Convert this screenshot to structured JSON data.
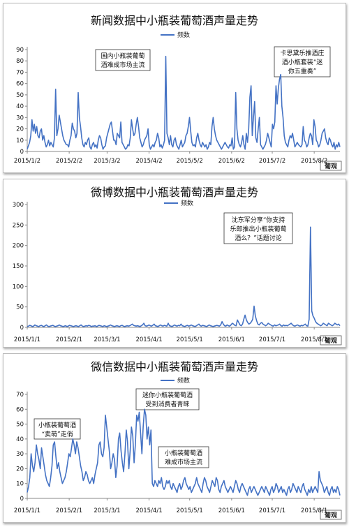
{
  "chart_data": [
    {
      "type": "line",
      "title": "新闻数据中小瓶装葡萄酒声量走势",
      "series": [
        {
          "name": "频数",
          "color": "#4472c4",
          "values": [
            2,
            5,
            8,
            14,
            28,
            18,
            24,
            16,
            22,
            14,
            12,
            18,
            20,
            10,
            14,
            8,
            4,
            6,
            10,
            5,
            8,
            6,
            4,
            12,
            55,
            14,
            20,
            32,
            26,
            20,
            14,
            10,
            8,
            6,
            6,
            4,
            10,
            14,
            25,
            20,
            18,
            12,
            16,
            52,
            30,
            22,
            12,
            6,
            4,
            8,
            6,
            10,
            12,
            4,
            2,
            6,
            8,
            4,
            6,
            3,
            10,
            14,
            12,
            6,
            2,
            4,
            5,
            12,
            16,
            20,
            24,
            26,
            18,
            10,
            10,
            6,
            16,
            14,
            12,
            26,
            8,
            6,
            4,
            2,
            3,
            6,
            5,
            12,
            28,
            20,
            14,
            16,
            24,
            30,
            22,
            12,
            8,
            4,
            6,
            10,
            12,
            14,
            20,
            6,
            2,
            4,
            6,
            4,
            8,
            10,
            16,
            12,
            4,
            6,
            3,
            6,
            10,
            84,
            16,
            12,
            6,
            14,
            6,
            4,
            10,
            12,
            6,
            4,
            2,
            6,
            10,
            4,
            6,
            8,
            14,
            16,
            22,
            30,
            18,
            8,
            5,
            6,
            4,
            12,
            16,
            10,
            6,
            4,
            8,
            6,
            4,
            6,
            2,
            4,
            8,
            6,
            22,
            30,
            20,
            14,
            10,
            8,
            6,
            4,
            2,
            4,
            6,
            8,
            6,
            4,
            3,
            6,
            5,
            12,
            2,
            4,
            52,
            20,
            10,
            6,
            4,
            8,
            14,
            6,
            2,
            16,
            8,
            20,
            48,
            58,
            14,
            30,
            44,
            12,
            8,
            20,
            30,
            6,
            4,
            2,
            4,
            6,
            10,
            16,
            12,
            8,
            4,
            24,
            20,
            26,
            58,
            42,
            56,
            64,
            68,
            40,
            30,
            14,
            8,
            6,
            4,
            10,
            14,
            12,
            16,
            10,
            4,
            6,
            8,
            6,
            5,
            4,
            6,
            22,
            10,
            8,
            4,
            6,
            12,
            16,
            14,
            6,
            28,
            22,
            10,
            8,
            4,
            6,
            10,
            16,
            18,
            20,
            12,
            8,
            6,
            12,
            10,
            6,
            4,
            8,
            2,
            6,
            4,
            8,
            4
          ]
        }
      ],
      "x_ticks": [
        "2015/1/2",
        "2015/2/2",
        "2015/3/2",
        "2015/4/2",
        "2015/5/2",
        "2015/6/2",
        "2015/7/2",
        "2015/8/2"
      ],
      "x_range": [
        "2015/1/2",
        "2015/8/21"
      ],
      "ylim": [
        0,
        90
      ],
      "y_ticks": [
        0,
        10,
        20,
        30,
        40,
        50,
        60,
        70,
        80,
        90
      ],
      "annotations": [
        {
          "lines": [
            "国内小瓶装葡萄",
            "酒难成市场主流"
          ]
        },
        {
          "lines": [
            "卡思黛乐推酒庄",
            "酒小瓶套装“迷",
            "你五重奏”"
          ]
        }
      ],
      "logo": "葡观"
    },
    {
      "type": "line",
      "title": "微博数据中小瓶装葡萄酒声量走势",
      "series": [
        {
          "name": "频数",
          "color": "#4472c4",
          "values": [
            2,
            3,
            5,
            4,
            2,
            3,
            6,
            4,
            3,
            2,
            4,
            5,
            3,
            2,
            4,
            6,
            3,
            2,
            3,
            4,
            5,
            3,
            2,
            3,
            4,
            6,
            4,
            3,
            2,
            3,
            4,
            2,
            3,
            5,
            4,
            3,
            2,
            3,
            4,
            3,
            2,
            4,
            6,
            3,
            2,
            3,
            4,
            3,
            5,
            4,
            2,
            3,
            3,
            4,
            2,
            3,
            5,
            4,
            3,
            2,
            4,
            3,
            2,
            3,
            4,
            6,
            4,
            3,
            2,
            3,
            4,
            3,
            2,
            4,
            5,
            3,
            2,
            3,
            4,
            3,
            4,
            6,
            8,
            5,
            4,
            3,
            4,
            3,
            2,
            4,
            6,
            10,
            4,
            3,
            4,
            6,
            4,
            3,
            5,
            8,
            4,
            3,
            2,
            4,
            6,
            4,
            3,
            5,
            4,
            3,
            10,
            4,
            3,
            2,
            4,
            6,
            4,
            3,
            5,
            4,
            8,
            4,
            3,
            2,
            4,
            5,
            3,
            4,
            6,
            4,
            3,
            2,
            4,
            6,
            8,
            4,
            3,
            5,
            4,
            3,
            2,
            4,
            6,
            4,
            3,
            2,
            3,
            4,
            5,
            4,
            3,
            6,
            14,
            8,
            4,
            3,
            6,
            4,
            3,
            6,
            10,
            8,
            5,
            4,
            18,
            12,
            6,
            4,
            8,
            20,
            30,
            18,
            12,
            8,
            10,
            14,
            20,
            52,
            28,
            16,
            8,
            6,
            10,
            12,
            8,
            6,
            4,
            6,
            10,
            8,
            6,
            4,
            3,
            6,
            4,
            5,
            6,
            8,
            4,
            3,
            6,
            4,
            5,
            4,
            6,
            8,
            10,
            6,
            4,
            3,
            5,
            6,
            4,
            3,
            5,
            4,
            6,
            8,
            4,
            3,
            20,
            245,
            40,
            28,
            22,
            14,
            10,
            8,
            6,
            4,
            6,
            10,
            8,
            6,
            4,
            10,
            8,
            6,
            4,
            6,
            10,
            8,
            6,
            8,
            4
          ]
        }
      ],
      "x_ticks": [
        "2015/1/1",
        "2015/2/1",
        "2015/3/1",
        "2015/4/1",
        "2015/5/1",
        "2015/6/1",
        "2015/7/1",
        "2015/8/1"
      ],
      "x_range": [
        "2015/1/1",
        "2015/8/20"
      ],
      "ylim": [
        0,
        300
      ],
      "y_ticks": [
        0,
        50,
        100,
        150,
        200,
        250,
        300
      ],
      "annotations": [
        {
          "lines": [
            "沈东军分享“你支持",
            "乐郎推出小瓶装葡萄",
            "酒么？”话题讨论"
          ]
        }
      ],
      "logo": "葡观"
    },
    {
      "type": "line",
      "title": "微信数据中小瓶装葡萄酒声量走势",
      "series": [
        {
          "name": "频数",
          "color": "#4472c4",
          "values": [
            4,
            8,
            14,
            30,
            22,
            18,
            24,
            36,
            30,
            26,
            20,
            34,
            28,
            22,
            16,
            12,
            10,
            8,
            14,
            22,
            36,
            38,
            28,
            20,
            24,
            18,
            14,
            10,
            12,
            14,
            18,
            24,
            30,
            28,
            34,
            40,
            36,
            30,
            38,
            34,
            28,
            22,
            18,
            12,
            14,
            18,
            16,
            12,
            10,
            12,
            14,
            10,
            16,
            20,
            24,
            36,
            38,
            30,
            28,
            34,
            56,
            48,
            40,
            32,
            20,
            24,
            30,
            26,
            14,
            22,
            40,
            44,
            32,
            24,
            18,
            30,
            46,
            38,
            20,
            32,
            48,
            42,
            24,
            36,
            56,
            52,
            58,
            44,
            30,
            48,
            60,
            56,
            40,
            48,
            36,
            46,
            10,
            8,
            12,
            10,
            8,
            12,
            10,
            14,
            8,
            6,
            8,
            12,
            10,
            12,
            8,
            6,
            10,
            8,
            6,
            4,
            8,
            10,
            6,
            8,
            12,
            14,
            10,
            8,
            6,
            8,
            4,
            6,
            8,
            10,
            14,
            10,
            8,
            6,
            4,
            10,
            14,
            12,
            8,
            6,
            4,
            8,
            12,
            10,
            8,
            14,
            12,
            6,
            4,
            8,
            10,
            12,
            8,
            6,
            4,
            6,
            8,
            6,
            4,
            8,
            12,
            10,
            6,
            4,
            8,
            10,
            8,
            6,
            4,
            2,
            6,
            8,
            4,
            6,
            8,
            6,
            4,
            2,
            4,
            6,
            8,
            6,
            4,
            8,
            6,
            4,
            2,
            6,
            8,
            4,
            6,
            10,
            8,
            4,
            6,
            8,
            4,
            6,
            4,
            2,
            6,
            8,
            4,
            6,
            10,
            8,
            6,
            4,
            8,
            6,
            4,
            8,
            10,
            6,
            4,
            2,
            6,
            4,
            8,
            4,
            6,
            8,
            6,
            4,
            18,
            12,
            10,
            8,
            4,
            6,
            8,
            4,
            2,
            6,
            8,
            4,
            6,
            4,
            8,
            6,
            2
          ]
        }
      ],
      "x_ticks": [
        "2015/1/1",
        "2015/2/1",
        "2015/3/1",
        "2015/4/1",
        "2015/5/1",
        "2015/6/1",
        "2015/7/1",
        "2015/8/1"
      ],
      "x_range": [
        "2015/1/1",
        "2015/8/20"
      ],
      "ylim": [
        0,
        70
      ],
      "y_ticks": [
        0,
        10,
        20,
        30,
        40,
        50,
        60,
        70
      ],
      "annotations": [
        {
          "lines": [
            "小瓶装葡萄酒",
            "“卖萌”走俏"
          ]
        },
        {
          "lines": [
            "迷你小瓶装葡萄酒",
            "受到消费者青睐"
          ]
        },
        {
          "lines": [
            "小瓶装葡萄酒",
            "难成市场主流"
          ]
        }
      ],
      "logo": "葡观"
    }
  ]
}
